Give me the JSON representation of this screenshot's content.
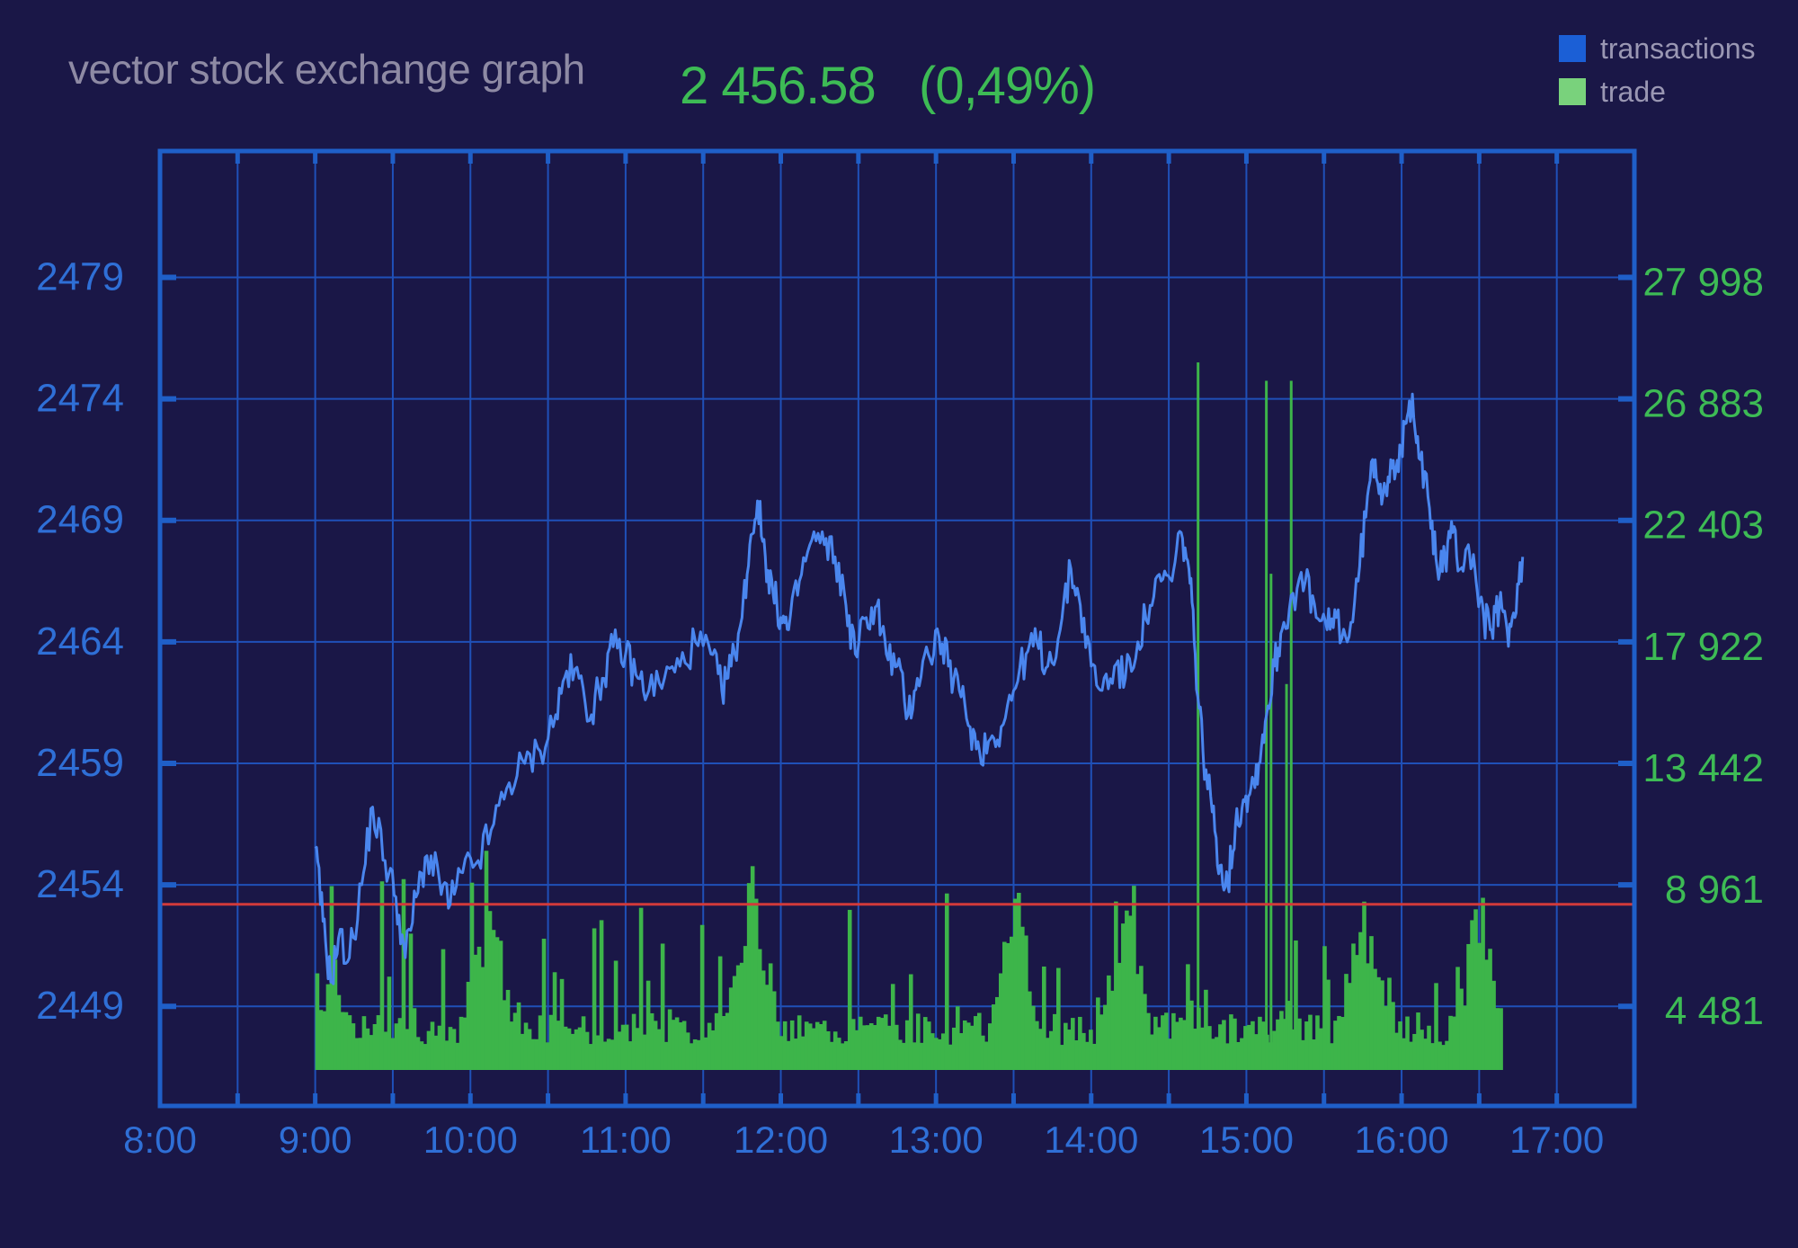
{
  "header": {
    "title": "vector stock exchange graph",
    "price": "2 456.58",
    "change": "(0,49%)"
  },
  "legend": [
    {
      "label": "transactions",
      "color": "#1b5fd6"
    },
    {
      "label": "trade",
      "color": "#79d27c"
    }
  ],
  "colors": {
    "background": "#1a1747",
    "frame": "#1f5fc8",
    "grid": "#1f50b8",
    "price_line": "#4a86ee",
    "volume": "#3db54a",
    "reference_line": "#d23a3a",
    "left_axis_text": "#2f6fd6",
    "right_axis_text": "#3dbb55"
  },
  "chart_data": {
    "type": "line",
    "xlabel": "",
    "ylabel": "",
    "x_ticks": [
      "8:00",
      "9:00",
      "10:00",
      "11:00",
      "12:00",
      "13:00",
      "14:00",
      "15:00",
      "16:00",
      "17:00"
    ],
    "xlim_hours": [
      8,
      17.5
    ],
    "left_axis": {
      "ticks": [
        "2479",
        "2474",
        "2469",
        "2464",
        "2459",
        "2454",
        "2449"
      ],
      "tick_values": [
        2479,
        2474,
        2469,
        2464,
        2459,
        2454,
        2449
      ],
      "ylim": [
        2444.9,
        2484.2
      ]
    },
    "right_axis": {
      "ticks": [
        "27 998",
        "26 883",
        "22 403",
        "17 922",
        "13 442",
        "8 961",
        "4 481"
      ]
    },
    "reference_line": 2453.2,
    "series": [
      {
        "name": "transactions",
        "type": "line",
        "axis": "left",
        "points": [
          [
            9.0,
            2455.5
          ],
          [
            9.05,
            2452.5
          ],
          [
            9.1,
            2450.0
          ],
          [
            9.15,
            2451.8
          ],
          [
            9.22,
            2451.0
          ],
          [
            9.3,
            2454.0
          ],
          [
            9.37,
            2457.2
          ],
          [
            9.45,
            2455.0
          ],
          [
            9.52,
            2453.5
          ],
          [
            9.58,
            2451.0
          ],
          [
            9.65,
            2453.5
          ],
          [
            9.72,
            2455.2
          ],
          [
            9.8,
            2454.2
          ],
          [
            9.87,
            2453.2
          ],
          [
            9.95,
            2454.5
          ],
          [
            10.05,
            2455.0
          ],
          [
            10.15,
            2456.5
          ],
          [
            10.25,
            2458.2
          ],
          [
            10.35,
            2459.0
          ],
          [
            10.45,
            2459.5
          ],
          [
            10.55,
            2461.0
          ],
          [
            10.62,
            2462.8
          ],
          [
            10.7,
            2462.5
          ],
          [
            10.78,
            2461.0
          ],
          [
            10.85,
            2462.5
          ],
          [
            10.92,
            2463.8
          ],
          [
            11.0,
            2463.5
          ],
          [
            11.08,
            2462.5
          ],
          [
            11.15,
            2462.0
          ],
          [
            11.25,
            2462.5
          ],
          [
            11.35,
            2463.0
          ],
          [
            11.45,
            2464.0
          ],
          [
            11.55,
            2463.5
          ],
          [
            11.62,
            2462.0
          ],
          [
            11.68,
            2463.0
          ],
          [
            11.75,
            2465.0
          ],
          [
            11.8,
            2468.0
          ],
          [
            11.85,
            2469.8
          ],
          [
            11.9,
            2467.5
          ],
          [
            11.95,
            2466.0
          ],
          [
            12.0,
            2465.0
          ],
          [
            12.05,
            2464.5
          ],
          [
            12.12,
            2466.5
          ],
          [
            12.2,
            2468.2
          ],
          [
            12.28,
            2468.0
          ],
          [
            12.35,
            2467.5
          ],
          [
            12.42,
            2465.5
          ],
          [
            12.48,
            2463.5
          ],
          [
            12.55,
            2465.0
          ],
          [
            12.62,
            2465.5
          ],
          [
            12.68,
            2463.5
          ],
          [
            12.75,
            2463.0
          ],
          [
            12.82,
            2461.0
          ],
          [
            12.88,
            2462.5
          ],
          [
            12.95,
            2463.5
          ],
          [
            13.02,
            2464.2
          ],
          [
            13.08,
            2463.0
          ],
          [
            13.15,
            2462.0
          ],
          [
            13.22,
            2460.5
          ],
          [
            13.28,
            2459.5
          ],
          [
            13.35,
            2460.0
          ],
          [
            13.42,
            2460.5
          ],
          [
            13.5,
            2462.0
          ],
          [
            13.58,
            2463.5
          ],
          [
            13.65,
            2464.0
          ],
          [
            13.72,
            2463.0
          ],
          [
            13.8,
            2464.5
          ],
          [
            13.87,
            2467.0
          ],
          [
            13.93,
            2465.5
          ],
          [
            14.0,
            2463.0
          ],
          [
            14.07,
            2462.0
          ],
          [
            14.15,
            2463.0
          ],
          [
            14.22,
            2462.5
          ],
          [
            14.3,
            2464.0
          ],
          [
            14.38,
            2465.5
          ],
          [
            14.45,
            2466.5
          ],
          [
            14.52,
            2466.5
          ],
          [
            14.58,
            2468.5
          ],
          [
            14.63,
            2467.0
          ],
          [
            14.67,
            2463.5
          ],
          [
            14.72,
            2459.5
          ],
          [
            14.78,
            2457.0
          ],
          [
            14.83,
            2454.8
          ],
          [
            14.88,
            2454.0
          ],
          [
            14.93,
            2456.5
          ],
          [
            14.98,
            2457.5
          ],
          [
            15.03,
            2458.0
          ],
          [
            15.08,
            2459.0
          ],
          [
            15.13,
            2461.0
          ],
          [
            15.18,
            2463.0
          ],
          [
            15.23,
            2464.5
          ],
          [
            15.3,
            2466.0
          ],
          [
            15.38,
            2466.5
          ],
          [
            15.45,
            2465.0
          ],
          [
            15.52,
            2464.5
          ],
          [
            15.58,
            2465.0
          ],
          [
            15.65,
            2464.0
          ],
          [
            15.72,
            2466.5
          ],
          [
            15.78,
            2470.0
          ],
          [
            15.83,
            2471.5
          ],
          [
            15.88,
            2470.0
          ],
          [
            15.93,
            2471.5
          ],
          [
            15.98,
            2471.0
          ],
          [
            16.03,
            2473.0
          ],
          [
            16.07,
            2474.2
          ],
          [
            16.12,
            2471.5
          ],
          [
            16.18,
            2469.5
          ],
          [
            16.23,
            2467.0
          ],
          [
            16.28,
            2467.5
          ],
          [
            16.33,
            2468.5
          ],
          [
            16.38,
            2467.0
          ],
          [
            16.43,
            2468.0
          ],
          [
            16.48,
            2466.5
          ],
          [
            16.53,
            2465.0
          ],
          [
            16.58,
            2464.5
          ],
          [
            16.63,
            2465.5
          ],
          [
            16.68,
            2464.5
          ],
          [
            16.73,
            2465.0
          ],
          [
            16.78,
            2467.5
          ]
        ]
      },
      {
        "name": "trade",
        "type": "bar",
        "axis": "right",
        "range_hours": [
          9.0,
          16.65
        ],
        "level_scale": "0-100 (0 = baseline, 100 = top of frame)",
        "base_level": 4.5,
        "spike_groups": [
          {
            "center": 9.1,
            "peak": 14
          },
          {
            "center": 10.1,
            "peak": 24
          },
          {
            "center": 11.8,
            "peak": 26
          },
          {
            "center": 13.5,
            "peak": 22
          },
          {
            "center": 14.2,
            "peak": 21
          },
          {
            "center": 15.75,
            "peak": 21
          },
          {
            "center": 16.5,
            "peak": 22
          }
        ],
        "tall_spikes": [
          {
            "hour": 14.68,
            "level": 77
          },
          {
            "hour": 15.12,
            "level": 75
          },
          {
            "hour": 15.28,
            "level": 75
          },
          {
            "hour": 15.15,
            "level": 54
          },
          {
            "hour": 15.25,
            "level": 42
          }
        ]
      }
    ],
    "grid": true,
    "legend_position": "top-right"
  }
}
